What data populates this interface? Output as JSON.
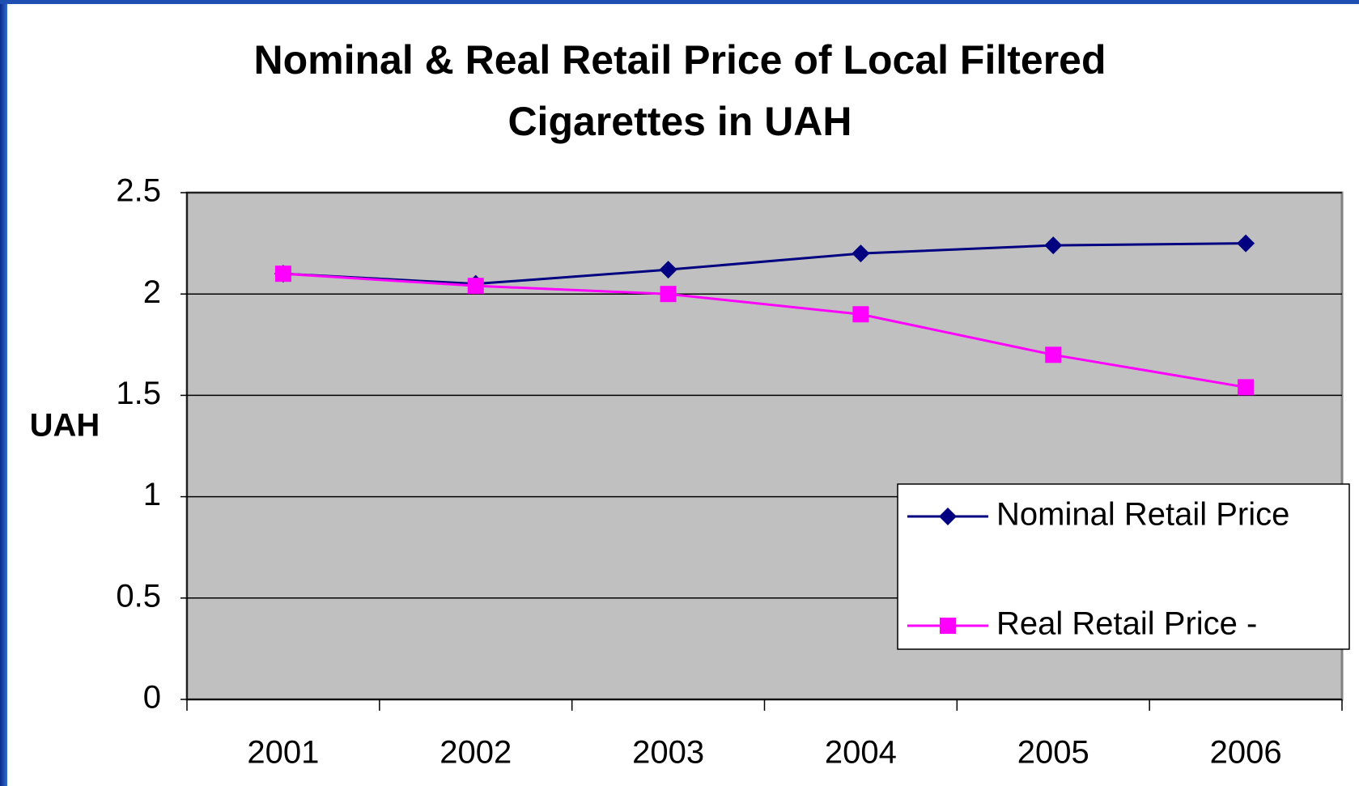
{
  "chart_data": {
    "type": "line",
    "title": "Nominal & Real Retail Price of Local Filtered Cigarettes in UAH",
    "y_label": "UAH",
    "categories": [
      "2001",
      "2002",
      "2003",
      "2004",
      "2005",
      "2006"
    ],
    "series": [
      {
        "name": "Nominal Retail Price",
        "color": "#000080",
        "marker": "diamond",
        "values": [
          2.1,
          2.05,
          2.12,
          2.2,
          2.24,
          2.25
        ]
      },
      {
        "name": "Real Retail Price -",
        "color": "#ff00ff",
        "marker": "square",
        "values": [
          2.1,
          2.04,
          2.0,
          1.9,
          1.7,
          1.54
        ]
      }
    ],
    "ylim": [
      0,
      2.5
    ],
    "yticks": [
      0,
      0.5,
      1,
      1.5,
      2,
      2.5
    ],
    "grid": true,
    "legend": "lower right"
  }
}
